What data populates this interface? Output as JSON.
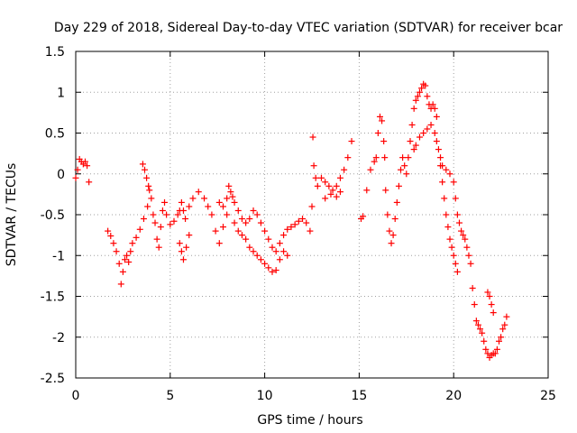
{
  "chart_data": {
    "type": "scatter",
    "title": "Day 229 of 2018, Sidereal Day-to-day VTEC variation (SDTVAR) for receiver bcar",
    "xlabel": "GPS time / hours",
    "ylabel": "SDTVAR / TECUs",
    "xlim": [
      0,
      25
    ],
    "ylim": [
      -2.5,
      1.5
    ],
    "xticks": [
      0,
      5,
      10,
      15,
      20,
      25
    ],
    "xtick_labels": [
      "0",
      "5",
      "10",
      "15",
      "20",
      "25"
    ],
    "yticks": [
      -2.5,
      -2,
      -1.5,
      -1,
      -0.5,
      0,
      0.5,
      1,
      1.5
    ],
    "ytick_labels": [
      "-2.5",
      "-2",
      "-1.5",
      "-1",
      "-0.5",
      "0",
      "0.5",
      "1",
      "1.5"
    ],
    "grid": true,
    "marker": "+",
    "color": "#ff0000",
    "series": [
      {
        "name": "SDTVAR",
        "points": [
          [
            0.0,
            -0.05
          ],
          [
            0.1,
            0.05
          ],
          [
            0.2,
            0.18
          ],
          [
            0.3,
            0.15
          ],
          [
            0.4,
            0.12
          ],
          [
            0.5,
            0.15
          ],
          [
            0.6,
            0.1
          ],
          [
            0.7,
            -0.1
          ],
          [
            1.7,
            -0.7
          ],
          [
            1.85,
            -0.76
          ],
          [
            2.0,
            -0.85
          ],
          [
            2.15,
            -0.95
          ],
          [
            2.3,
            -1.1
          ],
          [
            2.4,
            -1.35
          ],
          [
            2.5,
            -1.2
          ],
          [
            2.6,
            -1.05
          ],
          [
            2.7,
            -1.0
          ],
          [
            2.8,
            -1.08
          ],
          [
            2.9,
            -0.95
          ],
          [
            3.0,
            -0.85
          ],
          [
            3.2,
            -0.78
          ],
          [
            3.4,
            -0.68
          ],
          [
            3.6,
            -0.55
          ],
          [
            3.8,
            -0.4
          ],
          [
            3.9,
            -0.2
          ],
          [
            3.55,
            0.12
          ],
          [
            3.65,
            0.05
          ],
          [
            3.75,
            -0.05
          ],
          [
            3.85,
            -0.15
          ],
          [
            4.0,
            -0.3
          ],
          [
            4.1,
            -0.5
          ],
          [
            4.2,
            -0.6
          ],
          [
            4.3,
            -0.8
          ],
          [
            4.4,
            -0.9
          ],
          [
            4.5,
            -0.65
          ],
          [
            4.6,
            -0.45
          ],
          [
            4.7,
            -0.35
          ],
          [
            4.8,
            -0.5
          ],
          [
            5.0,
            -0.62
          ],
          [
            5.2,
            -0.58
          ],
          [
            5.4,
            -0.5
          ],
          [
            5.5,
            -0.45
          ],
          [
            5.6,
            -0.35
          ],
          [
            5.7,
            -0.45
          ],
          [
            5.8,
            -0.55
          ],
          [
            6.0,
            -0.4
          ],
          [
            6.2,
            -0.3
          ],
          [
            6.5,
            -0.22
          ],
          [
            6.8,
            -0.3
          ],
          [
            7.0,
            -0.4
          ],
          [
            5.5,
            -0.85
          ],
          [
            5.6,
            -0.95
          ],
          [
            5.7,
            -1.05
          ],
          [
            5.85,
            -0.9
          ],
          [
            6.0,
            -0.75
          ],
          [
            7.2,
            -0.5
          ],
          [
            7.4,
            -0.7
          ],
          [
            7.6,
            -0.85
          ],
          [
            7.8,
            -0.65
          ],
          [
            8.0,
            -0.5
          ],
          [
            7.6,
            -0.35
          ],
          [
            7.8,
            -0.4
          ],
          [
            8.0,
            -0.3
          ],
          [
            8.1,
            -0.15
          ],
          [
            8.2,
            -0.22
          ],
          [
            8.3,
            -0.28
          ],
          [
            8.4,
            -0.35
          ],
          [
            8.6,
            -0.45
          ],
          [
            8.8,
            -0.55
          ],
          [
            9.0,
            -0.6
          ],
          [
            9.2,
            -0.55
          ],
          [
            9.4,
            -0.45
          ],
          [
            9.6,
            -0.5
          ],
          [
            9.8,
            -0.6
          ],
          [
            10.0,
            -0.7
          ],
          [
            8.4,
            -0.6
          ],
          [
            8.6,
            -0.7
          ],
          [
            8.8,
            -0.75
          ],
          [
            9.0,
            -0.8
          ],
          [
            9.2,
            -0.9
          ],
          [
            9.4,
            -0.95
          ],
          [
            9.6,
            -1.0
          ],
          [
            9.8,
            -1.05
          ],
          [
            10.0,
            -1.1
          ],
          [
            10.2,
            -1.15
          ],
          [
            10.4,
            -1.2
          ],
          [
            10.6,
            -1.18
          ],
          [
            10.2,
            -0.8
          ],
          [
            10.4,
            -0.9
          ],
          [
            10.6,
            -0.95
          ],
          [
            10.8,
            -0.85
          ],
          [
            11.0,
            -0.75
          ],
          [
            11.2,
            -0.68
          ],
          [
            11.4,
            -0.65
          ],
          [
            11.6,
            -0.62
          ],
          [
            11.8,
            -0.58
          ],
          [
            12.0,
            -0.55
          ],
          [
            12.2,
            -0.6
          ],
          [
            12.4,
            -0.7
          ],
          [
            10.8,
            -1.05
          ],
          [
            11.0,
            -0.95
          ],
          [
            11.2,
            -1.0
          ],
          [
            12.5,
            -0.4
          ],
          [
            12.55,
            0.45
          ],
          [
            12.6,
            0.1
          ],
          [
            12.7,
            -0.05
          ],
          [
            12.8,
            -0.15
          ],
          [
            13.0,
            -0.05
          ],
          [
            13.2,
            -0.1
          ],
          [
            13.4,
            -0.15
          ],
          [
            13.6,
            -0.2
          ],
          [
            13.8,
            -0.15
          ],
          [
            14.0,
            -0.05
          ],
          [
            14.2,
            0.05
          ],
          [
            14.4,
            0.2
          ],
          [
            14.6,
            0.4
          ],
          [
            13.2,
            -0.3
          ],
          [
            13.5,
            -0.25
          ],
          [
            13.8,
            -0.28
          ],
          [
            14.0,
            -0.22
          ],
          [
            15.1,
            -0.55
          ],
          [
            15.2,
            -0.52
          ],
          [
            15.4,
            -0.2
          ],
          [
            15.6,
            0.05
          ],
          [
            15.8,
            0.15
          ],
          [
            15.9,
            0.2
          ],
          [
            16.0,
            0.5
          ],
          [
            16.1,
            0.7
          ],
          [
            16.2,
            0.65
          ],
          [
            16.3,
            0.4
          ],
          [
            16.35,
            0.2
          ],
          [
            16.4,
            -0.2
          ],
          [
            16.5,
            -0.5
          ],
          [
            16.6,
            -0.7
          ],
          [
            16.7,
            -0.85
          ],
          [
            16.8,
            -0.75
          ],
          [
            16.9,
            -0.55
          ],
          [
            17.0,
            -0.35
          ],
          [
            17.1,
            -0.15
          ],
          [
            17.2,
            0.05
          ],
          [
            17.3,
            0.2
          ],
          [
            17.4,
            0.1
          ],
          [
            17.5,
            0.0
          ],
          [
            17.6,
            0.2
          ],
          [
            17.7,
            0.4
          ],
          [
            17.8,
            0.6
          ],
          [
            17.9,
            0.8
          ],
          [
            18.0,
            0.9
          ],
          [
            18.1,
            0.95
          ],
          [
            18.2,
            1.0
          ],
          [
            18.3,
            1.05
          ],
          [
            18.4,
            1.1
          ],
          [
            18.5,
            1.08
          ],
          [
            18.6,
            0.95
          ],
          [
            18.7,
            0.85
          ],
          [
            18.8,
            0.8
          ],
          [
            18.9,
            0.85
          ],
          [
            19.0,
            0.8
          ],
          [
            19.1,
            0.7
          ],
          [
            17.9,
            0.3
          ],
          [
            18.0,
            0.35
          ],
          [
            18.2,
            0.45
          ],
          [
            18.4,
            0.5
          ],
          [
            18.6,
            0.55
          ],
          [
            18.8,
            0.6
          ],
          [
            19.0,
            0.5
          ],
          [
            19.2,
            0.3
          ],
          [
            19.3,
            0.1
          ],
          [
            19.4,
            -0.1
          ],
          [
            19.5,
            -0.3
          ],
          [
            19.6,
            -0.5
          ],
          [
            19.7,
            -0.65
          ],
          [
            19.8,
            -0.8
          ],
          [
            19.9,
            -0.9
          ],
          [
            20.0,
            -1.0
          ],
          [
            20.1,
            -1.1
          ],
          [
            20.2,
            -1.2
          ],
          [
            19.1,
            0.4
          ],
          [
            19.3,
            0.2
          ],
          [
            19.4,
            0.1
          ],
          [
            19.6,
            0.05
          ],
          [
            19.8,
            0.0
          ],
          [
            20.0,
            -0.1
          ],
          [
            20.1,
            -0.3
          ],
          [
            20.2,
            -0.5
          ],
          [
            20.3,
            -0.6
          ],
          [
            20.4,
            -0.7
          ],
          [
            20.5,
            -0.75
          ],
          [
            20.6,
            -0.8
          ],
          [
            20.7,
            -0.9
          ],
          [
            20.8,
            -1.0
          ],
          [
            20.9,
            -1.1
          ],
          [
            21.0,
            -1.4
          ],
          [
            21.1,
            -1.6
          ],
          [
            21.2,
            -1.8
          ],
          [
            21.3,
            -1.85
          ],
          [
            21.4,
            -1.9
          ],
          [
            21.5,
            -1.95
          ],
          [
            21.6,
            -2.05
          ],
          [
            21.7,
            -2.15
          ],
          [
            21.8,
            -2.2
          ],
          [
            21.9,
            -2.25
          ],
          [
            22.0,
            -2.22
          ],
          [
            22.1,
            -2.2
          ],
          [
            22.2,
            -2.2
          ],
          [
            22.3,
            -2.15
          ],
          [
            22.4,
            -2.05
          ],
          [
            22.5,
            -2.0
          ],
          [
            22.6,
            -1.9
          ],
          [
            22.7,
            -1.85
          ],
          [
            22.8,
            -1.75
          ],
          [
            21.8,
            -1.45
          ],
          [
            21.9,
            -1.5
          ],
          [
            22.0,
            -1.6
          ],
          [
            22.1,
            -1.7
          ]
        ]
      }
    ]
  }
}
